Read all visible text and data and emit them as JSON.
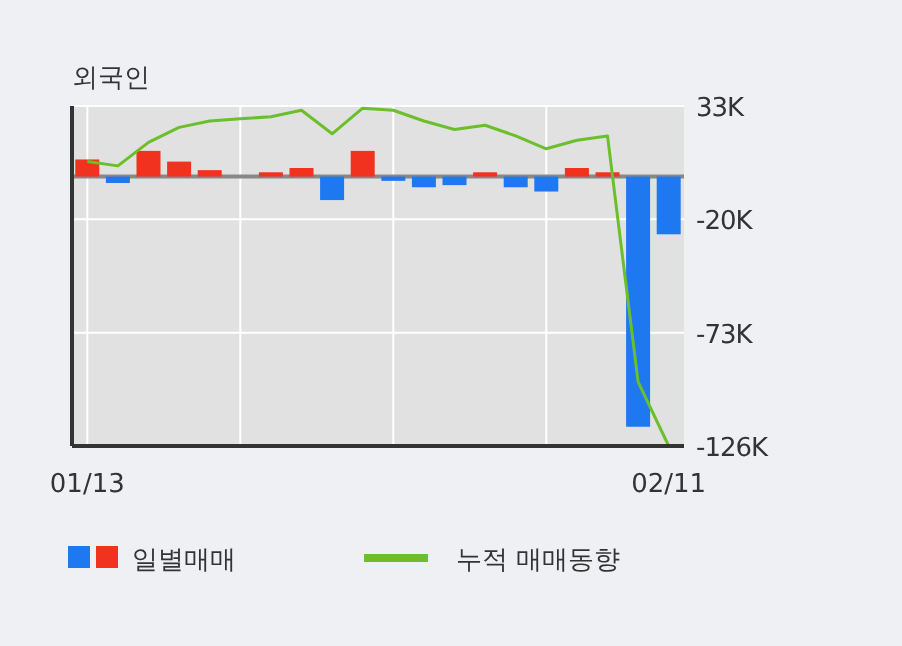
{
  "chart_data": {
    "type": "bar",
    "title": "외국인",
    "categories": [
      "01/13",
      null,
      null,
      null,
      null,
      null,
      null,
      null,
      null,
      null,
      null,
      null,
      null,
      null,
      null,
      null,
      null,
      null,
      null,
      "02/11"
    ],
    "series": [
      {
        "name": "일별매매",
        "colors": [
          "#f0321e",
          "#1e78f0",
          "#f0321e",
          "#f0321e",
          "#f0321e",
          "#f0321e",
          "#f0321e",
          "#f0321e",
          "#1e78f0",
          "#f0321e",
          "#1e78f0",
          "#1e78f0",
          "#1e78f0",
          "#f0321e",
          "#1e78f0",
          "#1e78f0",
          "#f0321e",
          "#f0321e",
          "#1e78f0",
          "#1e78f0"
        ],
        "values": [
          8,
          -3,
          12,
          7,
          3,
          0,
          2,
          4,
          -11,
          12,
          -2,
          -5,
          -4,
          2,
          -5,
          -7,
          4,
          2,
          -117,
          -27
        ]
      },
      {
        "name": "누적 매매동향",
        "type": "line",
        "color": "#6abf2a",
        "values": [
          7,
          5,
          16,
          23,
          26,
          27,
          28,
          31,
          20,
          32,
          31,
          26,
          22,
          24,
          19,
          13,
          17,
          19,
          -96,
          -126
        ]
      }
    ],
    "ylim": [
      -126,
      33
    ],
    "yticks": [
      {
        "value": 33,
        "label": "33K"
      },
      {
        "value": -20,
        "label": "-20K"
      },
      {
        "value": -73,
        "label": "-73K"
      },
      {
        "value": -126,
        "label": "-126K"
      }
    ],
    "ref_lines": [
      {
        "axis": "y",
        "value": 0,
        "color": "#888888"
      }
    ],
    "grid": true,
    "legend": "bottom"
  }
}
